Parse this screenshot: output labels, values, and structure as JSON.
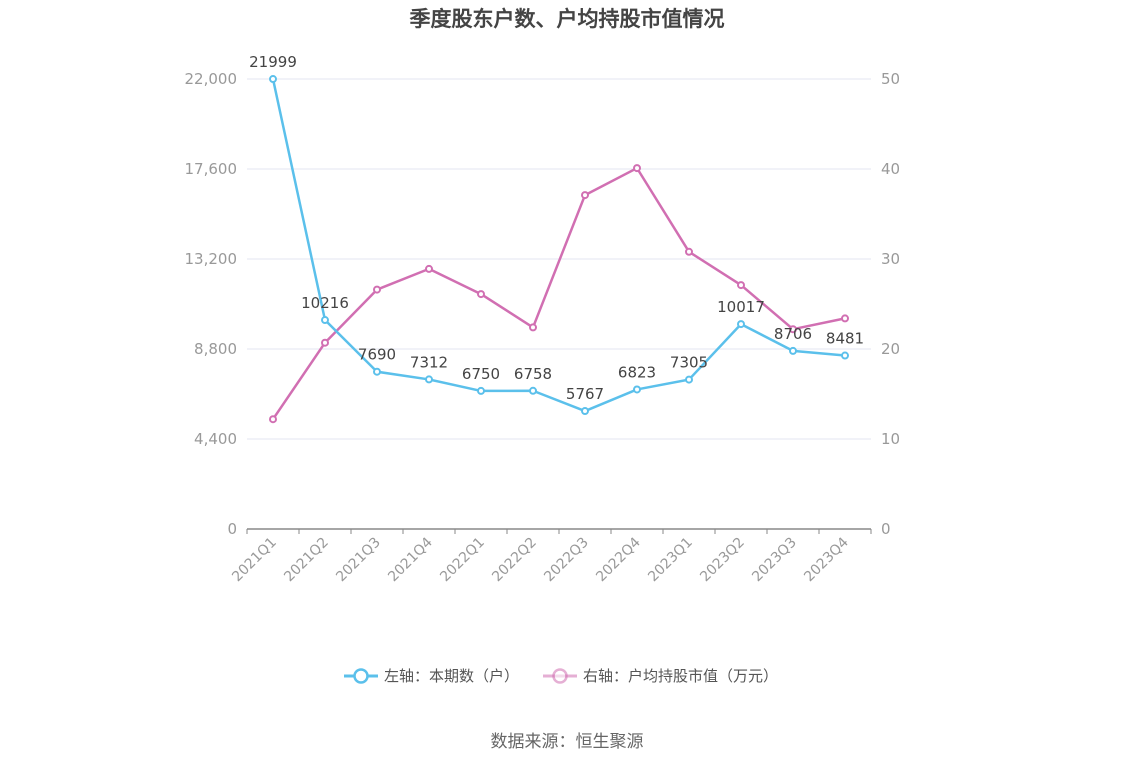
{
  "chart_data": {
    "type": "line",
    "title": "季度股东户数、户均持股市值情况",
    "categories": [
      "2021Q1",
      "2021Q2",
      "2021Q3",
      "2021Q4",
      "2022Q1",
      "2022Q2",
      "2022Q3",
      "2022Q4",
      "2023Q1",
      "2023Q2",
      "2023Q3",
      "2023Q4"
    ],
    "y_left": {
      "min": 0,
      "max": 22000,
      "ticks": [
        "0",
        "4,400",
        "8,800",
        "13,200",
        "17,600",
        "22,000"
      ]
    },
    "y_right": {
      "min": 0,
      "max": 50,
      "ticks": [
        "0",
        "10",
        "20",
        "30",
        "40",
        "50"
      ]
    },
    "grid": true,
    "legend_position": "bottom",
    "series": [
      {
        "name": "左轴：本期数（户）",
        "axis": "left",
        "color": "#5bc0eb",
        "values": [
          21999,
          10216,
          7690,
          7312,
          6750,
          6758,
          5767,
          6823,
          7305,
          10017,
          8706,
          8481
        ],
        "labels": [
          "21999",
          "10216",
          "7690",
          "7312",
          "6750",
          "6758",
          "5767",
          "6823",
          "7305",
          "10017",
          "8706",
          "8481"
        ]
      },
      {
        "name": "右轴：户均持股市值（万元）",
        "axis": "right",
        "color": "#d16fb2",
        "values": [
          12.2,
          20.7,
          26.6,
          28.9,
          26.1,
          22.4,
          37.1,
          40.1,
          30.8,
          27.1,
          22.2,
          23.4
        ]
      }
    ],
    "source": "数据来源：恒生聚源"
  }
}
